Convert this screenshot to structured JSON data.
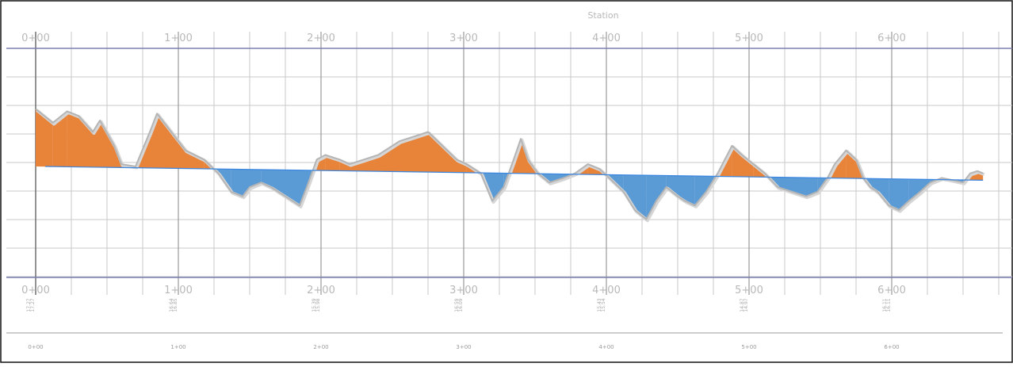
{
  "axis_title": "Station",
  "top_stations": [
    "0+00",
    "1+00",
    "2+00",
    "3+00",
    "4+00",
    "5+00",
    "6+00"
  ],
  "mid_stations": [
    "0+00",
    "1+00",
    "2+00",
    "3+00",
    "4+00",
    "5+00",
    "6+00"
  ],
  "bottom_stations": [
    "0+00",
    "1+00",
    "2+00",
    "3+00",
    "4+00",
    "5+00",
    "6+00"
  ],
  "elevation_pairs": [
    [
      "17.27",
      "17.27"
    ],
    [
      "16.64",
      "16.85"
    ],
    [
      "15.39",
      "15.98"
    ],
    [
      "16.59",
      "16.09"
    ],
    [
      "15.43",
      "15.54"
    ],
    [
      "14.87",
      "14.97"
    ],
    [
      "16.11",
      "16.11"
    ]
  ],
  "ground_profile": [
    [
      0,
      17.4
    ],
    [
      12,
      17.1
    ],
    [
      22,
      17.35
    ],
    [
      30,
      17.25
    ],
    [
      40,
      16.9
    ],
    [
      45,
      17.15
    ],
    [
      55,
      16.6
    ],
    [
      60,
      16.2
    ],
    [
      70,
      16.15
    ],
    [
      80,
      16.9
    ],
    [
      85,
      17.3
    ],
    [
      95,
      16.9
    ],
    [
      105,
      16.5
    ],
    [
      118,
      16.3
    ],
    [
      128,
      16.0
    ],
    [
      137,
      15.6
    ],
    [
      145,
      15.5
    ],
    [
      150,
      15.7
    ],
    [
      158,
      15.8
    ],
    [
      165,
      15.7
    ],
    [
      175,
      15.5
    ],
    [
      185,
      15.3
    ],
    [
      190,
      15.7
    ],
    [
      197,
      16.3
    ],
    [
      203,
      16.4
    ],
    [
      213,
      16.3
    ],
    [
      220,
      16.2
    ],
    [
      230,
      16.3
    ],
    [
      240,
      16.4
    ],
    [
      255,
      16.7
    ],
    [
      265,
      16.8
    ],
    [
      275,
      16.9
    ],
    [
      285,
      16.6
    ],
    [
      295,
      16.3
    ],
    [
      302,
      16.2
    ],
    [
      312,
      16.0
    ],
    [
      320,
      15.4
    ],
    [
      328,
      15.7
    ],
    [
      335,
      16.3
    ],
    [
      340,
      16.75
    ],
    [
      345,
      16.3
    ],
    [
      352,
      16.0
    ],
    [
      360,
      15.8
    ],
    [
      370,
      15.9
    ],
    [
      378,
      16.0
    ],
    [
      387,
      16.2
    ],
    [
      395,
      16.1
    ],
    [
      402,
      15.9
    ],
    [
      412,
      15.6
    ],
    [
      420,
      15.2
    ],
    [
      428,
      15.0
    ],
    [
      435,
      15.4
    ],
    [
      442,
      15.7
    ],
    [
      450,
      15.5
    ],
    [
      455,
      15.4
    ],
    [
      462,
      15.3
    ],
    [
      470,
      15.6
    ],
    [
      478,
      16.0
    ],
    [
      488,
      16.6
    ],
    [
      495,
      16.4
    ],
    [
      503,
      16.2
    ],
    [
      511,
      16.0
    ],
    [
      520,
      15.7
    ],
    [
      530,
      15.6
    ],
    [
      540,
      15.5
    ],
    [
      548,
      15.6
    ],
    [
      555,
      15.9
    ],
    [
      560,
      16.2
    ],
    [
      568,
      16.5
    ],
    [
      575,
      16.3
    ],
    [
      580,
      15.9
    ],
    [
      585,
      15.7
    ],
    [
      590,
      15.6
    ],
    [
      598,
      15.3
    ],
    [
      605,
      15.2
    ],
    [
      612,
      15.4
    ],
    [
      620,
      15.6
    ],
    [
      627,
      15.8
    ],
    [
      635,
      15.9
    ],
    [
      643,
      15.85
    ],
    [
      650,
      15.8
    ],
    [
      655,
      16.0
    ],
    [
      660,
      16.05
    ],
    [
      664,
      16.0
    ]
  ],
  "design_grade": [
    [
      0,
      16.15
    ],
    [
      664,
      15.85
    ]
  ],
  "colors": {
    "fill": "#e8833a",
    "cut": "#5b9bd5",
    "grid": "#c9c9c9",
    "grid_dark": "#9a9a9a",
    "band": "#7b7fb0",
    "ground": "#b5b5b5",
    "grade": "#3a86e0",
    "label": "#b8b8b8"
  }
}
